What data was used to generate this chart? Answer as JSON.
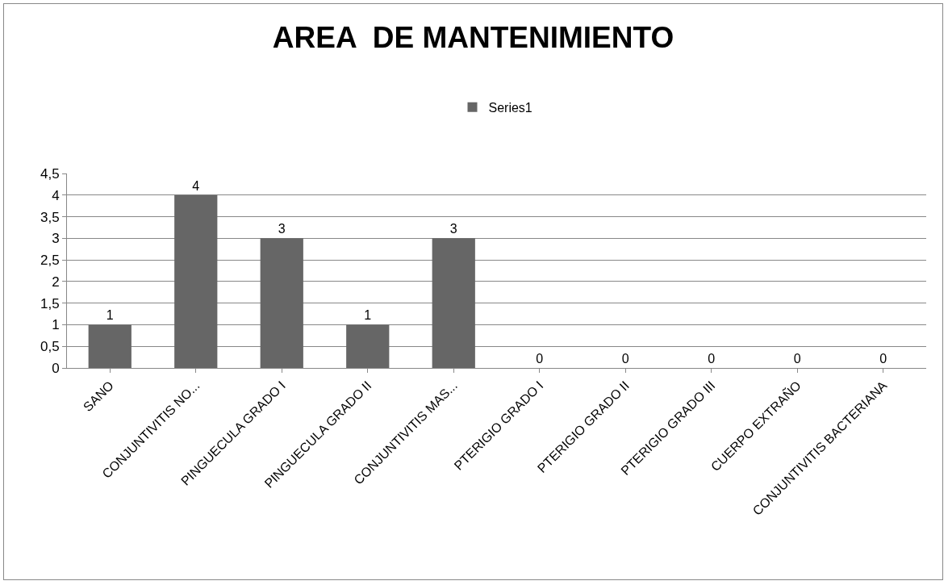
{
  "chart_data": {
    "type": "bar",
    "title": "AREA  DE MANTENIMIENTO",
    "categories": [
      "SANO",
      "CONJUNTIVITIS NO...",
      "PINGUECULA GRADO I",
      "PINGUECULA GRADO II",
      "CONJUNTIVITIS MAS...",
      "PTERIGIO GRADO I",
      "PTERIGIO GRADO II",
      "PTERIGIO GRADO III",
      "CUERPO EXTRAÑO",
      "CONJUNTIVITIS BACTERIANA"
    ],
    "series": [
      {
        "name": "Series1",
        "color": "#666666",
        "values": [
          1,
          4,
          3,
          1,
          3,
          0,
          0,
          0,
          0,
          0
        ]
      }
    ],
    "ylim": [
      0,
      4.5
    ],
    "yticks": [
      0,
      {
        "value": 0.5,
        "label": "0,5"
      },
      1,
      {
        "value": 1.5,
        "label": "1,5"
      },
      2,
      {
        "value": 2.5,
        "label": "2,5"
      },
      3,
      {
        "value": 3.5,
        "label": "3,5"
      },
      4,
      {
        "value": 4.5,
        "label": "4,5"
      }
    ],
    "grid": "y",
    "legend": "top",
    "data_labels": true
  }
}
